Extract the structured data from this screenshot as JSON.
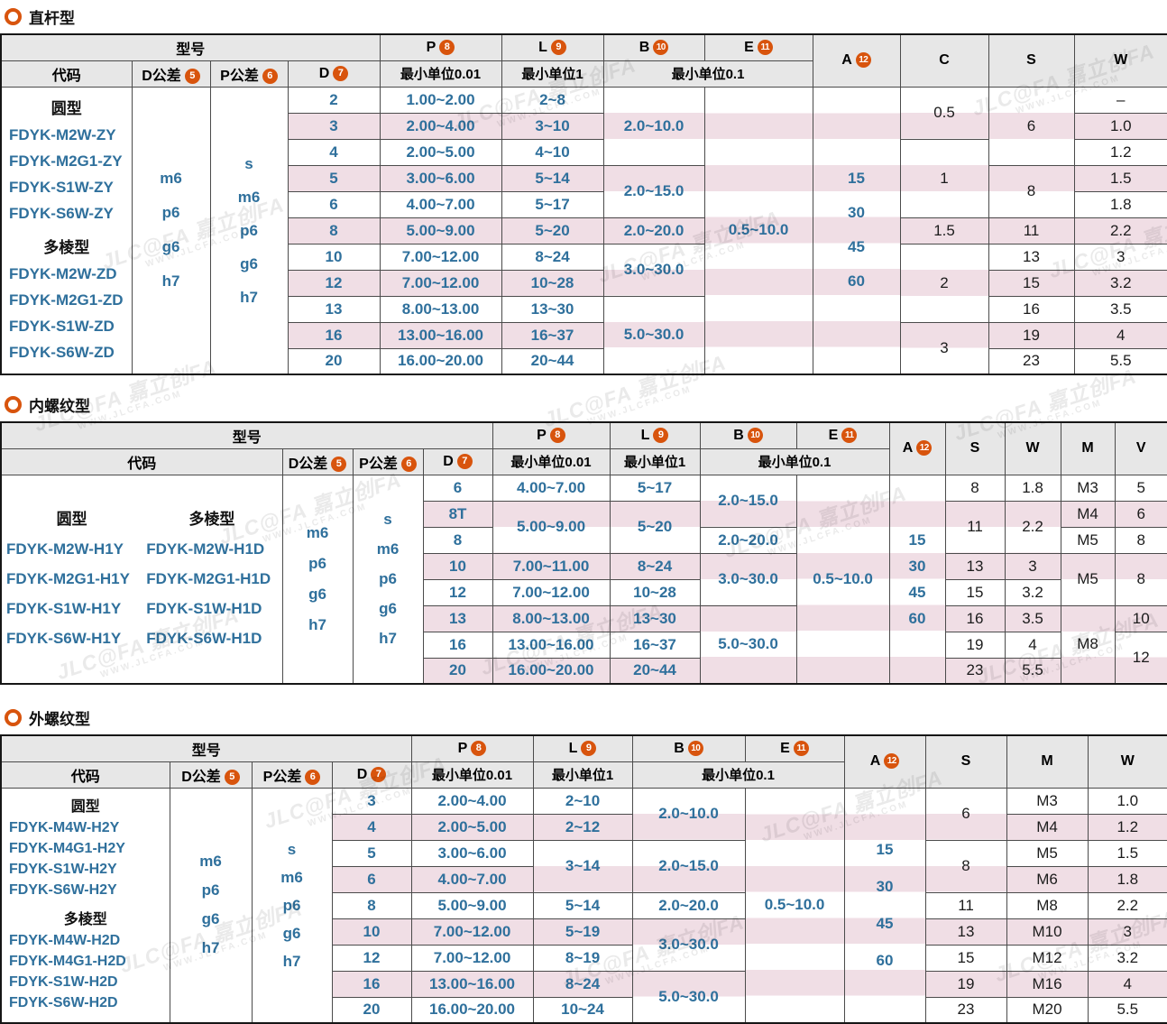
{
  "page": {
    "watermark": {
      "brand": "JLC@FA 嘉立创FA",
      "url": "WWW.JLCFA.COM"
    }
  },
  "colors": {
    "accent_orange": "#D8540D",
    "value_blue": "#2F709C",
    "stripe_pink": "#F0DEE5",
    "header_gray": "#E7E7E7"
  },
  "shared_header": {
    "model": "型号",
    "code": "代码",
    "cols": {
      "dtol": {
        "label": "D公差",
        "badge": "5"
      },
      "ptol": {
        "label": "P公差",
        "badge": "6"
      },
      "d": {
        "label": "D",
        "badge": "7"
      },
      "p": {
        "label": "P",
        "badge": "8"
      },
      "l": {
        "label": "L",
        "badge": "9"
      },
      "b": {
        "label": "B",
        "badge": "10"
      },
      "e": {
        "label": "E",
        "badge": "11"
      },
      "a": {
        "label": "A",
        "badge": "12"
      }
    },
    "units": {
      "p": "最小单位0.01",
      "l": "最小单位1",
      "be": "最小单位0.1"
    }
  },
  "tables": [
    {
      "title": "直杆型",
      "rows": 11,
      "extra_cols": [
        "C",
        "S",
        "W"
      ],
      "codes": {
        "layout": "single",
        "groups": [
          {
            "head": "圆型",
            "codes": [
              "FDYK-M2W-ZY",
              "FDYK-M2G1-ZY",
              "FDYK-S1W-ZY",
              "FDYK-S6W-ZY"
            ]
          },
          {
            "head": "多棱型",
            "codes": [
              "FDYK-M2W-ZD",
              "FDYK-M2G1-ZD",
              "FDYK-S1W-ZD",
              "FDYK-S6W-ZD"
            ]
          }
        ]
      },
      "dtol_lines": [
        "m6",
        "p6",
        "g6",
        "h7"
      ],
      "ptol_lines": [
        "s",
        "m6",
        "p6",
        "g6",
        "h7"
      ],
      "a_lines": [
        "15",
        "30",
        "45",
        "60"
      ],
      "cols": {
        "d": [
          [
            1,
            "2"
          ],
          [
            1,
            "3"
          ],
          [
            1,
            "4"
          ],
          [
            1,
            "5"
          ],
          [
            1,
            "6"
          ],
          [
            1,
            "8"
          ],
          [
            1,
            "10"
          ],
          [
            1,
            "12"
          ],
          [
            1,
            "13"
          ],
          [
            1,
            "16"
          ],
          [
            1,
            "20"
          ]
        ],
        "p": [
          [
            1,
            "1.00~2.00"
          ],
          [
            1,
            "2.00~4.00"
          ],
          [
            1,
            "2.00~5.00"
          ],
          [
            1,
            "3.00~6.00"
          ],
          [
            1,
            "4.00~7.00"
          ],
          [
            1,
            "5.00~9.00"
          ],
          [
            1,
            "7.00~12.00"
          ],
          [
            1,
            "7.00~12.00"
          ],
          [
            1,
            "8.00~13.00"
          ],
          [
            1,
            "13.00~16.00"
          ],
          [
            1,
            "16.00~20.00"
          ]
        ],
        "l": [
          [
            1,
            "2~8"
          ],
          [
            1,
            "3~10"
          ],
          [
            1,
            "4~10"
          ],
          [
            1,
            "5~14"
          ],
          [
            1,
            "5~17"
          ],
          [
            1,
            "5~20"
          ],
          [
            1,
            "8~24"
          ],
          [
            1,
            "10~28"
          ],
          [
            1,
            "13~30"
          ],
          [
            1,
            "16~37"
          ],
          [
            1,
            "20~44"
          ]
        ],
        "b": [
          [
            3,
            "2.0~10.0"
          ],
          [
            2,
            "2.0~15.0"
          ],
          [
            1,
            "2.0~20.0"
          ],
          [
            2,
            "3.0~30.0"
          ],
          [
            3,
            "5.0~30.0"
          ]
        ],
        "e": [
          [
            11,
            "0.5~10.0"
          ]
        ]
      },
      "extras": [
        [
          [
            2,
            "0.5"
          ],
          [
            3,
            "1"
          ],
          [
            1,
            "1.5"
          ],
          [
            3,
            "2"
          ],
          [
            2,
            "3"
          ]
        ],
        [
          [
            3,
            "6"
          ],
          [
            2,
            "8"
          ],
          [
            1,
            "11"
          ],
          [
            1,
            "13"
          ],
          [
            1,
            "15"
          ],
          [
            1,
            "16"
          ],
          [
            1,
            "19"
          ],
          [
            1,
            "23"
          ]
        ],
        [
          [
            1,
            "–"
          ],
          [
            1,
            "1.0"
          ],
          [
            1,
            "1.2"
          ],
          [
            1,
            "1.5"
          ],
          [
            1,
            "1.8"
          ],
          [
            1,
            "2.2"
          ],
          [
            1,
            "3"
          ],
          [
            1,
            "3.2"
          ],
          [
            1,
            "3.5"
          ],
          [
            1,
            "4"
          ],
          [
            1,
            "5.5"
          ]
        ]
      ]
    },
    {
      "title": "内螺纹型",
      "rows": 8,
      "extra_cols": [
        "S",
        "W",
        "M",
        "V"
      ],
      "codes": {
        "layout": "dual",
        "groups": [
          {
            "head": "圆型",
            "codes": [
              "FDYK-M2W-H1Y",
              "FDYK-M2G1-H1Y",
              "FDYK-S1W-H1Y",
              "FDYK-S6W-H1Y"
            ]
          },
          {
            "head": "多棱型",
            "codes": [
              "FDYK-M2W-H1D",
              "FDYK-M2G1-H1D",
              "FDYK-S1W-H1D",
              "FDYK-S6W-H1D"
            ]
          }
        ]
      },
      "dtol_lines": [
        "m6",
        "p6",
        "g6",
        "h7"
      ],
      "ptol_lines": [
        "s",
        "m6",
        "p6",
        "g6",
        "h7"
      ],
      "a_lines": [
        "15",
        "30",
        "45",
        "60"
      ],
      "cols": {
        "d": [
          [
            1,
            "6"
          ],
          [
            1,
            "8T"
          ],
          [
            1,
            "8"
          ],
          [
            1,
            "10"
          ],
          [
            1,
            "12"
          ],
          [
            1,
            "13"
          ],
          [
            1,
            "16"
          ],
          [
            1,
            "20"
          ]
        ],
        "p": [
          [
            1,
            "4.00~7.00"
          ],
          [
            2,
            "5.00~9.00"
          ],
          [
            1,
            "7.00~11.00"
          ],
          [
            1,
            "7.00~12.00"
          ],
          [
            1,
            "8.00~13.00"
          ],
          [
            1,
            "13.00~16.00"
          ],
          [
            1,
            "16.00~20.00"
          ]
        ],
        "l": [
          [
            1,
            "5~17"
          ],
          [
            2,
            "5~20"
          ],
          [
            1,
            "8~24"
          ],
          [
            1,
            "10~28"
          ],
          [
            1,
            "13~30"
          ],
          [
            1,
            "16~37"
          ],
          [
            1,
            "20~44"
          ]
        ],
        "b": [
          [
            2,
            "2.0~15.0"
          ],
          [
            1,
            "2.0~20.0"
          ],
          [
            2,
            "3.0~30.0"
          ],
          [
            3,
            "5.0~30.0"
          ]
        ],
        "e": [
          [
            8,
            "0.5~10.0"
          ]
        ]
      },
      "extras": [
        [
          [
            1,
            "8"
          ],
          [
            2,
            "11"
          ],
          [
            1,
            "13"
          ],
          [
            1,
            "15"
          ],
          [
            1,
            "16"
          ],
          [
            1,
            "19"
          ],
          [
            1,
            "23"
          ]
        ],
        [
          [
            1,
            "1.8"
          ],
          [
            2,
            "2.2"
          ],
          [
            1,
            "3"
          ],
          [
            1,
            "3.2"
          ],
          [
            1,
            "3.5"
          ],
          [
            1,
            "4"
          ],
          [
            1,
            "5.5"
          ]
        ],
        [
          [
            1,
            "M3"
          ],
          [
            1,
            "M4"
          ],
          [
            1,
            "M5"
          ],
          [
            2,
            "M5"
          ],
          [
            3,
            "M8"
          ]
        ],
        [
          [
            1,
            "5"
          ],
          [
            1,
            "6"
          ],
          [
            1,
            "8"
          ],
          [
            2,
            "8"
          ],
          [
            1,
            "10"
          ],
          [
            2,
            "12"
          ]
        ]
      ]
    },
    {
      "title": "外螺纹型",
      "rows": 9,
      "extra_cols": [
        "S",
        "M",
        "W"
      ],
      "codes": {
        "layout": "single",
        "groups": [
          {
            "head": "圆型",
            "codes": [
              "FDYK-M4W-H2Y",
              "FDYK-M4G1-H2Y",
              "FDYK-S1W-H2Y",
              "FDYK-S6W-H2Y"
            ]
          },
          {
            "head": "多棱型",
            "codes": [
              "FDYK-M4W-H2D",
              "FDYK-M4G1-H2D",
              "FDYK-S1W-H2D",
              "FDYK-S6W-H2D"
            ]
          }
        ]
      },
      "dtol_lines": [
        "m6",
        "p6",
        "g6",
        "h7"
      ],
      "ptol_lines": [
        "s",
        "m6",
        "p6",
        "g6",
        "h7"
      ],
      "a_lines": [
        "15",
        "30",
        "45",
        "60"
      ],
      "cols": {
        "d": [
          [
            1,
            "3"
          ],
          [
            1,
            "4"
          ],
          [
            1,
            "5"
          ],
          [
            1,
            "6"
          ],
          [
            1,
            "8"
          ],
          [
            1,
            "10"
          ],
          [
            1,
            "12"
          ],
          [
            1,
            "16"
          ],
          [
            1,
            "20"
          ]
        ],
        "p": [
          [
            1,
            "2.00~4.00"
          ],
          [
            1,
            "2.00~5.00"
          ],
          [
            1,
            "3.00~6.00"
          ],
          [
            1,
            "4.00~7.00"
          ],
          [
            1,
            "5.00~9.00"
          ],
          [
            1,
            "7.00~12.00"
          ],
          [
            1,
            "7.00~12.00"
          ],
          [
            1,
            "13.00~16.00"
          ],
          [
            1,
            "16.00~20.00"
          ]
        ],
        "l": [
          [
            1,
            "2~10"
          ],
          [
            1,
            "2~12"
          ],
          [
            2,
            "3~14"
          ],
          [
            1,
            "5~14"
          ],
          [
            1,
            "5~19"
          ],
          [
            1,
            "8~19"
          ],
          [
            1,
            "8~24"
          ],
          [
            1,
            "10~24"
          ]
        ],
        "b": [
          [
            2,
            "2.0~10.0"
          ],
          [
            2,
            "2.0~15.0"
          ],
          [
            1,
            "2.0~20.0"
          ],
          [
            2,
            "3.0~30.0"
          ],
          [
            2,
            "5.0~30.0"
          ]
        ],
        "e": [
          [
            9,
            "0.5~10.0"
          ]
        ]
      },
      "extras": [
        [
          [
            2,
            "6"
          ],
          [
            2,
            "8"
          ],
          [
            1,
            "11"
          ],
          [
            1,
            "13"
          ],
          [
            1,
            "15"
          ],
          [
            1,
            "19"
          ],
          [
            1,
            "23"
          ]
        ],
        [
          [
            1,
            "M3"
          ],
          [
            1,
            "M4"
          ],
          [
            1,
            "M5"
          ],
          [
            1,
            "M6"
          ],
          [
            1,
            "M8"
          ],
          [
            1,
            "M10"
          ],
          [
            1,
            "M12"
          ],
          [
            1,
            "M16"
          ],
          [
            1,
            "M20"
          ]
        ],
        [
          [
            1,
            "1.0"
          ],
          [
            1,
            "1.2"
          ],
          [
            1,
            "1.5"
          ],
          [
            1,
            "1.8"
          ],
          [
            1,
            "2.2"
          ],
          [
            1,
            "3"
          ],
          [
            1,
            "3.2"
          ],
          [
            1,
            "4"
          ],
          [
            1,
            "5.5"
          ]
        ]
      ]
    }
  ]
}
